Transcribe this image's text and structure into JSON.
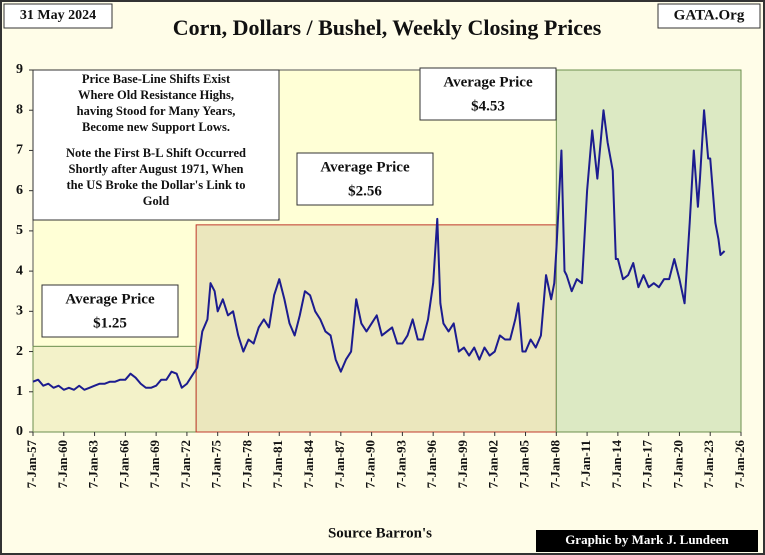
{
  "chart_data": {
    "type": "line",
    "title": "Corn, Dollars / Bushel, Weekly Closing Prices",
    "date_label": "31 May 2024",
    "site": "GATA.Org",
    "source": "Source Barron's",
    "credit": "Graphic by Mark J. Lundeen",
    "note": [
      "Price Base-Line Shifts Exist",
      "Where Old Resistance Highs,",
      "having Stood for Many Years,",
      "Become new Support Lows.",
      "Note the First B-L Shift Occurred",
      "Shortly after August 1971, When",
      "the US Broke the Dollar's Link to",
      "Gold"
    ],
    "bands": [
      {
        "from": 1957,
        "to": 1972.9,
        "top": 2.13,
        "color": "#f3f2c9",
        "edge": "#6b8e4e",
        "label": [
          "Average Price",
          "$1.25"
        ]
      },
      {
        "from": 1972.9,
        "to": 2008,
        "top": 5.15,
        "color": "#ebe7bd",
        "edge": "#c0392b",
        "label": [
          "Average Price",
          "$2.56"
        ]
      },
      {
        "from": 2008,
        "to": 2026,
        "top": 9,
        "color": "#dce9c3",
        "edge": "#6b8e4e",
        "label": [
          "Average Price",
          "$4.53"
        ]
      }
    ],
    "x": [
      1957,
      1957.5,
      1958,
      1958.5,
      1959,
      1959.5,
      1960,
      1960.5,
      1961,
      1961.5,
      1962,
      1962.5,
      1963,
      1963.5,
      1964,
      1964.5,
      1965,
      1965.5,
      1966,
      1966.5,
      1967,
      1967.5,
      1968,
      1968.5,
      1969,
      1969.5,
      1970,
      1970.5,
      1971,
      1971.5,
      1972,
      1972.5,
      1973,
      1973.5,
      1974,
      1974.3,
      1974.7,
      1975,
      1975.5,
      1976,
      1976.5,
      1977,
      1977.5,
      1978,
      1978.5,
      1979,
      1979.5,
      1980,
      1980.5,
      1981,
      1981.5,
      1982,
      1982.5,
      1983,
      1983.5,
      1984,
      1984.5,
      1985,
      1985.5,
      1986,
      1986.5,
      1987,
      1987.5,
      1988,
      1988.5,
      1989,
      1989.5,
      1990,
      1990.5,
      1991,
      1991.5,
      1992,
      1992.5,
      1993,
      1993.5,
      1994,
      1994.5,
      1995,
      1995.5,
      1996,
      1996.4,
      1996.7,
      1997,
      1997.5,
      1998,
      1998.5,
      1999,
      1999.5,
      2000,
      2000.5,
      2001,
      2001.5,
      2002,
      2002.5,
      2003,
      2003.5,
      2004,
      2004.3,
      2004.7,
      2005,
      2005.5,
      2006,
      2006.5,
      2007,
      2007.5,
      2007.8,
      2008,
      2008.5,
      2008.8,
      2009,
      2009.5,
      2010,
      2010.5,
      2011,
      2011.5,
      2012,
      2012.6,
      2013,
      2013.5,
      2013.8,
      2014,
      2014.5,
      2015,
      2015.5,
      2016,
      2016.5,
      2017,
      2017.5,
      2018,
      2018.5,
      2019,
      2019.5,
      2020,
      2020.5,
      2021,
      2021.4,
      2021.8,
      2022,
      2022.4,
      2022.8,
      2023,
      2023.5,
      2023.8,
      2024,
      2024.4
    ],
    "series": [
      {
        "name": "Corn",
        "color": "#1c1c8f",
        "values": [
          1.25,
          1.3,
          1.15,
          1.2,
          1.1,
          1.15,
          1.05,
          1.1,
          1.05,
          1.15,
          1.05,
          1.1,
          1.15,
          1.2,
          1.2,
          1.25,
          1.25,
          1.3,
          1.3,
          1.45,
          1.35,
          1.2,
          1.1,
          1.1,
          1.15,
          1.3,
          1.3,
          1.5,
          1.45,
          1.1,
          1.2,
          1.4,
          1.6,
          2.5,
          2.8,
          3.7,
          3.5,
          3.0,
          3.3,
          2.9,
          3.0,
          2.4,
          2.0,
          2.3,
          2.2,
          2.6,
          2.8,
          2.6,
          3.4,
          3.8,
          3.3,
          2.7,
          2.4,
          2.9,
          3.5,
          3.4,
          3.0,
          2.8,
          2.5,
          2.4,
          1.8,
          1.5,
          1.8,
          2.0,
          3.3,
          2.7,
          2.5,
          2.7,
          2.9,
          2.4,
          2.5,
          2.6,
          2.2,
          2.2,
          2.4,
          2.8,
          2.3,
          2.3,
          2.8,
          3.7,
          5.3,
          3.2,
          2.7,
          2.5,
          2.7,
          2.0,
          2.1,
          1.9,
          2.1,
          1.8,
          2.1,
          1.9,
          2.0,
          2.4,
          2.3,
          2.3,
          2.8,
          3.2,
          2.0,
          2.0,
          2.3,
          2.1,
          2.4,
          3.9,
          3.3,
          3.7,
          4.5,
          7.0,
          4.0,
          3.9,
          3.5,
          3.8,
          3.7,
          6.0,
          7.5,
          6.3,
          8.0,
          7.2,
          6.5,
          4.3,
          4.3,
          3.8,
          3.9,
          4.2,
          3.6,
          3.9,
          3.6,
          3.7,
          3.6,
          3.8,
          3.8,
          4.3,
          3.8,
          3.2,
          5.2,
          7.0,
          5.6,
          6.3,
          8.0,
          6.8,
          6.8,
          5.2,
          4.8,
          4.4,
          4.5
        ]
      }
    ],
    "xlim": [
      1957,
      2026
    ],
    "xticks": [
      {
        "value": 1957,
        "label": "7-Jan-57"
      },
      {
        "value": 1960,
        "label": "7-Jan-60"
      },
      {
        "value": 1963,
        "label": "7-Jan-63"
      },
      {
        "value": 1966,
        "label": "7-Jan-66"
      },
      {
        "value": 1969,
        "label": "7-Jan-69"
      },
      {
        "value": 1972,
        "label": "7-Jan-72"
      },
      {
        "value": 1975,
        "label": "7-Jan-75"
      },
      {
        "value": 1978,
        "label": "7-Jan-78"
      },
      {
        "value": 1981,
        "label": "7-Jan-81"
      },
      {
        "value": 1984,
        "label": "7-Jan-84"
      },
      {
        "value": 1987,
        "label": "7-Jan-87"
      },
      {
        "value": 1990,
        "label": "7-Jan-90"
      },
      {
        "value": 1993,
        "label": "7-Jan-93"
      },
      {
        "value": 1996,
        "label": "7-Jan-96"
      },
      {
        "value": 1999,
        "label": "7-Jan-99"
      },
      {
        "value": 2002,
        "label": "7-Jan-02"
      },
      {
        "value": 2005,
        "label": "7-Jan-05"
      },
      {
        "value": 2008,
        "label": "7-Jan-08"
      },
      {
        "value": 2011,
        "label": "7-Jan-11"
      },
      {
        "value": 2014,
        "label": "7-Jan-14"
      },
      {
        "value": 2017,
        "label": "7-Jan-17"
      },
      {
        "value": 2020,
        "label": "7-Jan-20"
      },
      {
        "value": 2023,
        "label": "7-Jan-23"
      },
      {
        "value": 2026,
        "label": "7-Jan-26"
      }
    ],
    "ylim": [
      0,
      9
    ],
    "yticks": [
      0,
      1,
      2,
      3,
      4,
      5,
      6,
      7,
      8,
      9
    ]
  }
}
